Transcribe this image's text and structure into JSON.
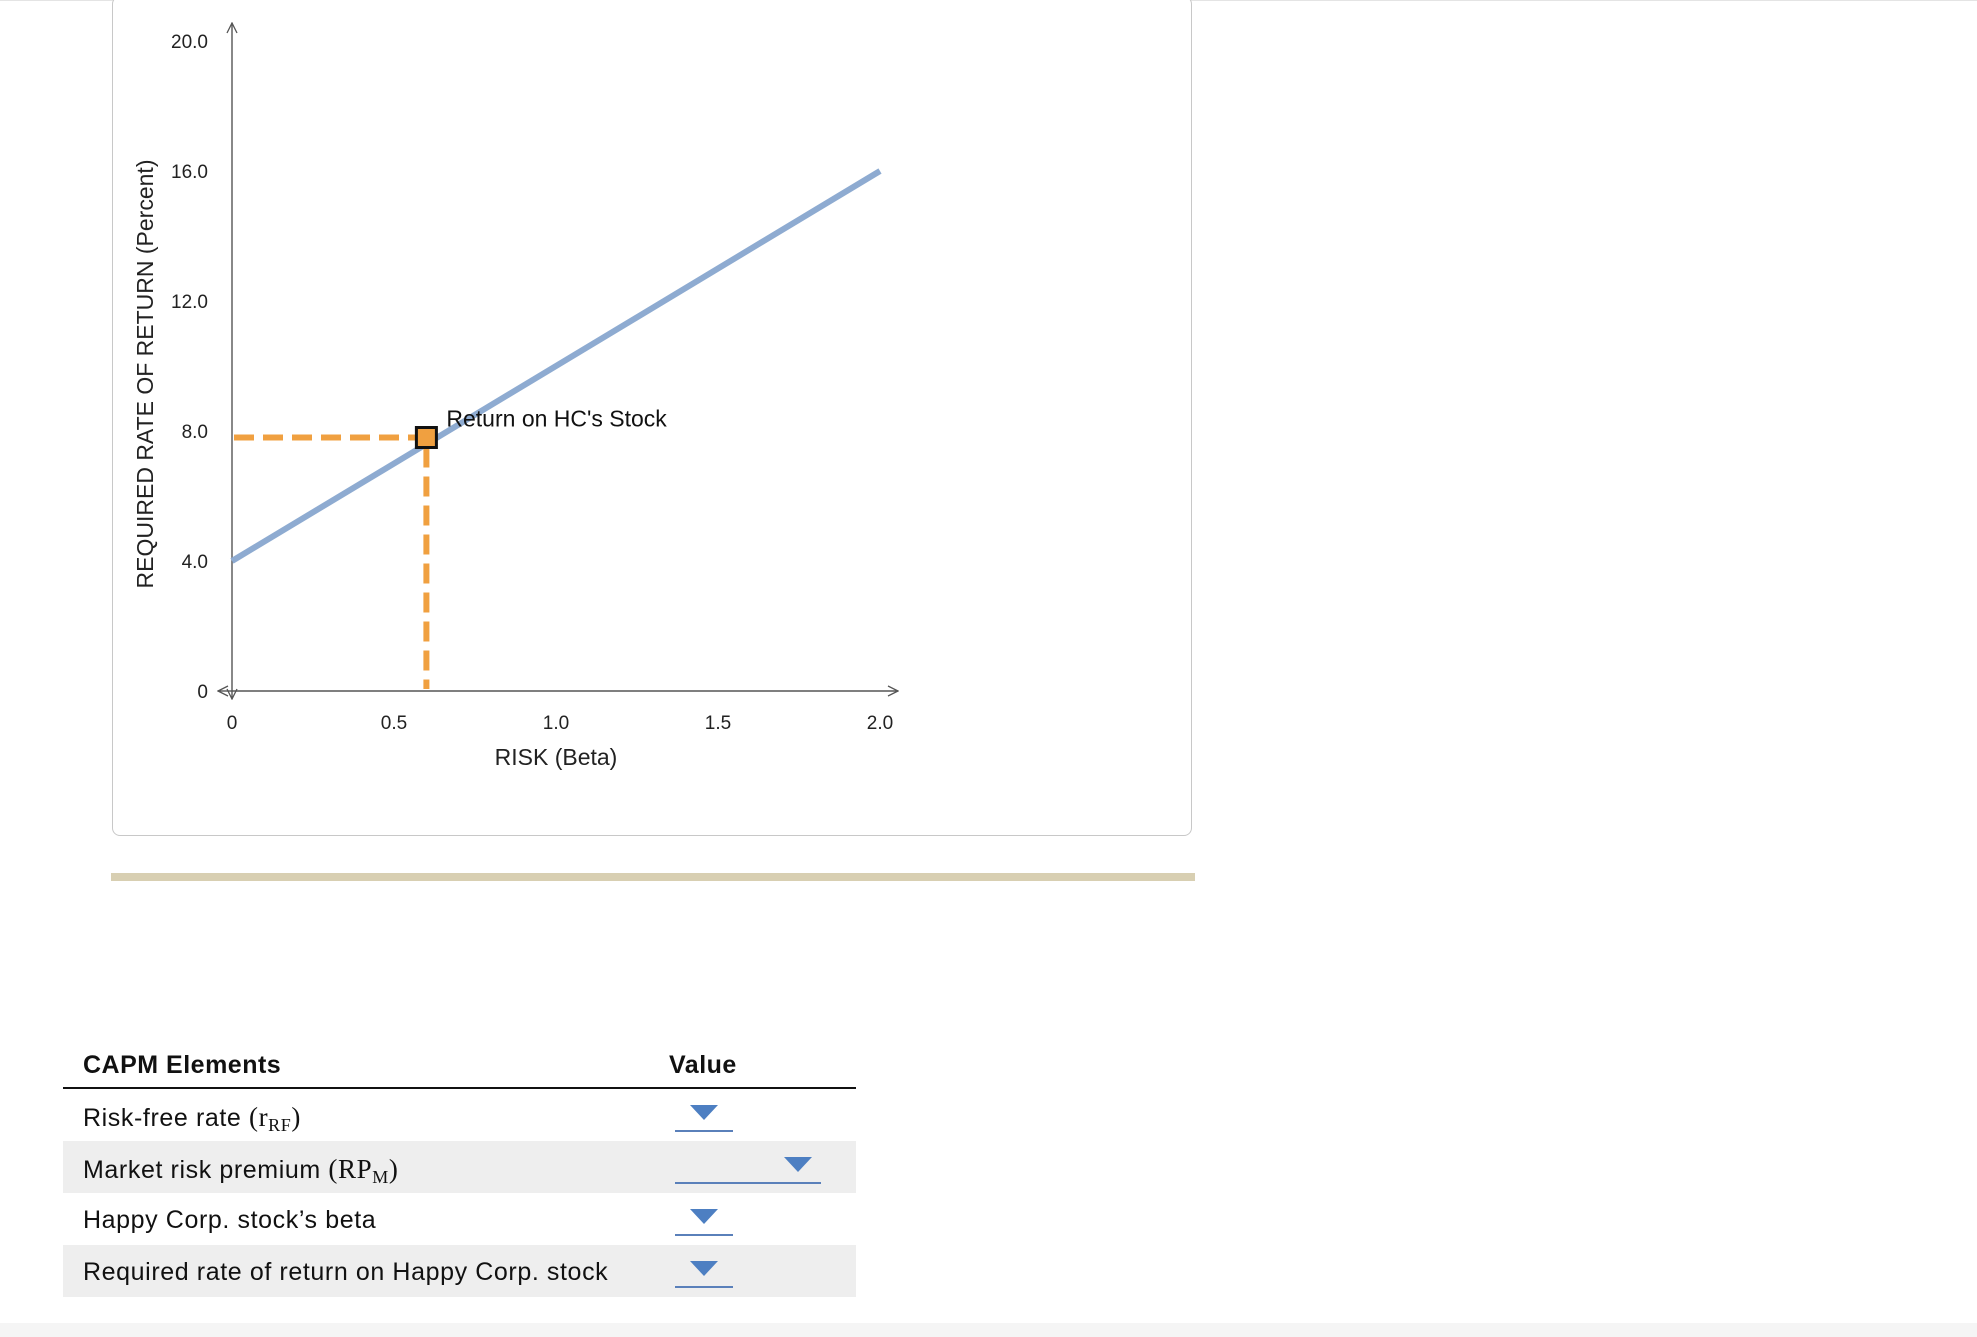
{
  "chart_data": {
    "type": "line",
    "title": "",
    "xlabel": "RISK (Beta)",
    "ylabel": "REQUIRED RATE OF RETURN (Percent)",
    "xlim": [
      0,
      2.0
    ],
    "ylim": [
      0,
      20.0
    ],
    "x_ticks": [
      "0",
      "0.5",
      "1.0",
      "1.5",
      "2.0"
    ],
    "y_ticks": [
      "0",
      "4.0",
      "8.0",
      "12.0",
      "16.0",
      "20.0"
    ],
    "grid": false,
    "series": [
      {
        "x": [
          0,
          2.0
        ],
        "values": [
          4.0,
          16.0
        ],
        "color": "#8eabd1"
      }
    ],
    "point": {
      "label": "Return on HC's Stock",
      "x": 0.6,
      "y": 7.8,
      "color": "#f0a040",
      "guide_color": "#f0a040"
    }
  },
  "table": {
    "headers": {
      "elements": "CAPM Elements",
      "value": "Value"
    },
    "rows": [
      {
        "label": "Risk-free rate",
        "symbol": "r",
        "subscript": "RF",
        "open": "(",
        "close": ")"
      },
      {
        "label": "Market risk premium",
        "symbol": "RP",
        "subscript": "M",
        "open": "(",
        "close": ")"
      },
      {
        "label": "Happy Corp. stock’s beta"
      },
      {
        "label": "Required rate of return on Happy Corp. stock"
      }
    ]
  },
  "colors": {
    "accent": "#4d7fc2",
    "divider": "#d8cfb2",
    "row_shade": "#eeeeee"
  }
}
